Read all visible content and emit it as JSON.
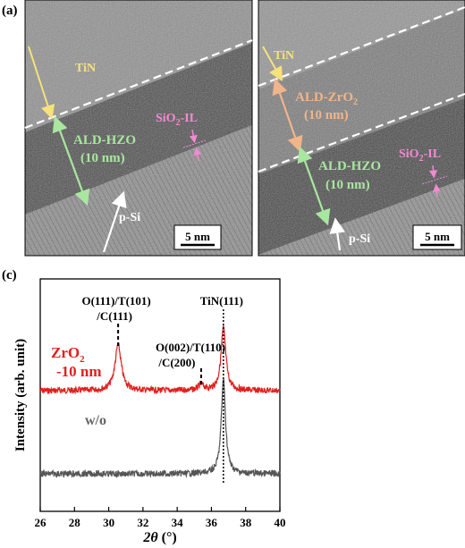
{
  "panels": {
    "a": {
      "label": "(a)",
      "tin": "TiN",
      "hzo_line1": "ALD-HZO",
      "hzo_line2": "(10 nm)",
      "sio2": "SiO",
      "sio2_sub": "2",
      "sio2_suffix": "-IL",
      "psi": "p-Si",
      "scale": "5 nm"
    },
    "b": {
      "label": "(b)",
      "tin": "TiN",
      "zro2_line1_a": "ALD-ZrO",
      "zro2_sub": "2",
      "zro2_line2": "(10 nm)",
      "hzo_line1": "ALD-HZO",
      "hzo_line2": "(10 nm)",
      "sio2": "SiO",
      "sio2_sub": "2",
      "sio2_suffix": "-IL",
      "psi": "p-Si",
      "scale": "5 nm"
    },
    "c": {
      "label": "(c)"
    }
  },
  "colors": {
    "tin": "#f5e27a",
    "hzo": "#a9e6a0",
    "zro2": "#f2b48a",
    "sio2": "#f08ad2",
    "zro2_series": "#e0201c",
    "wo_series": "#555555"
  },
  "chart_data": {
    "type": "line",
    "xlabel_symbol": "2θ",
    "xlabel_unit": " (°)",
    "ylabel": "Intensity (arb. unit)",
    "xlim": [
      26,
      40
    ],
    "xticks": [
      "26",
      "28",
      "30",
      "32",
      "34",
      "36",
      "38",
      "40"
    ],
    "series": [
      {
        "name_line1_a": "ZrO",
        "name_sub": "2",
        "name_line2": "-10 nm",
        "color": "#e0201c",
        "baseline": 0.57,
        "peaks": [
          {
            "x": 30.55,
            "height": 0.33,
            "width": 0.22
          },
          {
            "x": 35.4,
            "height": 0.04,
            "width": 0.2
          },
          {
            "x": 36.7,
            "height": 0.45,
            "width": 0.17
          }
        ]
      },
      {
        "name": "w/o",
        "color": "#555555",
        "baseline": 0.0,
        "peaks": [
          {
            "x": 36.7,
            "height": 0.68,
            "width": 0.15
          }
        ]
      }
    ],
    "annotations": [
      {
        "line1": "O(111)/T(101)",
        "line2": "/C(111)",
        "x": 30.55
      },
      {
        "line1": "O(002)/T(110)",
        "line2": "/C(200)",
        "x": 35.4
      },
      {
        "line1": "TiN(111)",
        "x": 36.7
      }
    ]
  }
}
